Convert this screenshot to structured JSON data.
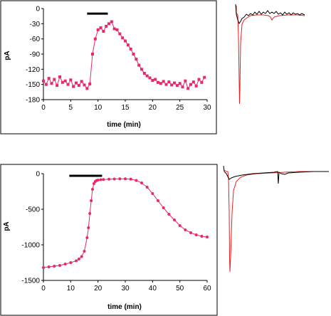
{
  "colors": {
    "data": "#e8276e",
    "trace_test": "#e82020",
    "trace_control": "#000000",
    "frame": "#000000"
  },
  "chart_data": [
    {
      "type": "scatter",
      "title": "",
      "xlabel": "time (min)",
      "ylabel": "pA",
      "xlim": [
        0,
        30
      ],
      "ylim": [
        -180,
        0
      ],
      "xticks": [
        "0",
        "5",
        "10",
        "15",
        "20",
        "25",
        "30"
      ],
      "yticks": [
        "0",
        "-30",
        "-60",
        "-90",
        "-120",
        "-150",
        "-180"
      ],
      "marker": "square",
      "connected": true,
      "grid": false,
      "bar": {
        "x_start": 8.0,
        "x_end": 11.8,
        "y": -10
      },
      "series": [
        {
          "x": [
            0.0,
            0.5,
            1.0,
            1.5,
            2.0,
            2.5,
            3.0,
            3.5,
            4.0,
            4.5,
            5.0,
            5.5,
            6.0,
            6.5,
            7.0,
            7.5,
            8.0,
            8.5,
            9.0,
            9.5,
            10.0,
            10.5,
            11.0,
            11.5,
            12.0,
            12.5,
            13.0,
            13.5,
            14.0,
            14.5,
            15.0,
            15.5,
            16.0,
            16.5,
            17.0,
            17.5,
            18.0,
            18.5,
            19.0,
            19.5,
            20.0,
            20.5,
            21.0,
            21.5,
            22.0,
            22.5,
            23.0,
            23.5,
            24.0,
            24.5,
            25.0,
            25.5,
            26.0,
            26.5,
            27.0,
            27.5,
            28.0,
            28.5,
            29.0,
            29.5
          ],
          "y": [
            -143,
            -150,
            -138,
            -148,
            -140,
            -152,
            -135,
            -146,
            -143,
            -150,
            -141,
            -154,
            -147,
            -152,
            -144,
            -151,
            -158,
            -149,
            -90,
            -60,
            -42,
            -38,
            -45,
            -35,
            -30,
            -26,
            -40,
            -42,
            -50,
            -58,
            -64,
            -72,
            -80,
            -90,
            -100,
            -112,
            -120,
            -128,
            -133,
            -137,
            -142,
            -140,
            -146,
            -148,
            -144,
            -150,
            -145,
            -151,
            -147,
            -152,
            -148,
            -155,
            -143,
            -158,
            -150,
            -145,
            -153,
            -140,
            -146,
            -136
          ]
        }
      ]
    },
    {
      "type": "line",
      "title": "",
      "description_units": "pA traces, no axes",
      "series_colors": [
        "red",
        "black"
      ]
    },
    {
      "type": "scatter",
      "title": "",
      "xlabel": "time (min)",
      "ylabel": "pA",
      "xlim": [
        0,
        60
      ],
      "ylim": [
        -1500,
        0
      ],
      "xticks": [
        "0",
        "10",
        "20",
        "30",
        "40",
        "50",
        "60"
      ],
      "yticks": [
        "0",
        "-500",
        "-1000",
        "-1500"
      ],
      "marker": "circle",
      "connected": true,
      "grid": false,
      "bar": {
        "x_start": 9.5,
        "x_end": 21.5,
        "y": -30
      },
      "series": [
        {
          "x": [
            0,
            2,
            4,
            6,
            8,
            10,
            12,
            13,
            14,
            15,
            16,
            16.5,
            17,
            17.5,
            18,
            18.5,
            19,
            19.5,
            20,
            21,
            22,
            24,
            26,
            28,
            30,
            32,
            34,
            36,
            38,
            40,
            42,
            44,
            46,
            48,
            50,
            52,
            54,
            56,
            58,
            60
          ],
          "y": [
            -1320,
            -1310,
            -1300,
            -1290,
            -1270,
            -1250,
            -1225,
            -1200,
            -1165,
            -1090,
            -900,
            -760,
            -560,
            -380,
            -220,
            -140,
            -110,
            -95,
            -90,
            -85,
            -82,
            -78,
            -75,
            -72,
            -73,
            -78,
            -95,
            -130,
            -190,
            -280,
            -380,
            -480,
            -570,
            -650,
            -730,
            -790,
            -830,
            -860,
            -880,
            -890
          ]
        }
      ]
    },
    {
      "type": "line",
      "title": "",
      "description_units": "pA traces, no axes",
      "series_colors": [
        "red",
        "black"
      ]
    }
  ]
}
